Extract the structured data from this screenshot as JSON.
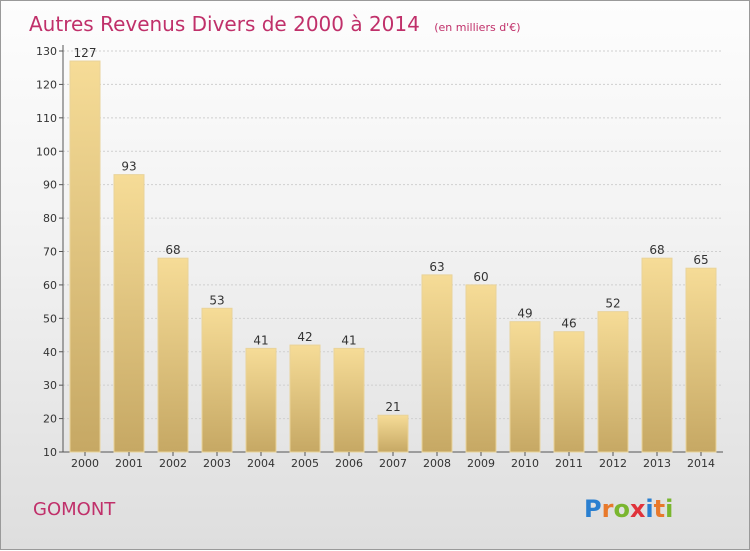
{
  "title": "Autres Revenus Divers de 2000 à 2014",
  "unit_note": "(en milliers d'€)",
  "place_name": "GOMONT",
  "logo": {
    "text": "Proxiti",
    "letters": [
      {
        "ch": "P",
        "color": "#2a7fd0"
      },
      {
        "ch": "r",
        "color": "#e8792b"
      },
      {
        "ch": "o",
        "color": "#7ab62f"
      },
      {
        "ch": "x",
        "color": "#e0333b"
      },
      {
        "ch": "i",
        "color": "#2a7fd0"
      },
      {
        "ch": "t",
        "color": "#e8792b"
      },
      {
        "ch": "i",
        "color": "#7ab62f"
      }
    ]
  },
  "colors": {
    "accent": "#c0306a",
    "bar_top": "#f6dc97",
    "bar_bottom": "#c6a864",
    "grid": "#cfcfcf"
  },
  "chart_data": {
    "type": "bar",
    "categories": [
      "2000",
      "2001",
      "2002",
      "2003",
      "2004",
      "2005",
      "2006",
      "2007",
      "2008",
      "2009",
      "2010",
      "2011",
      "2012",
      "2013",
      "2014"
    ],
    "values": [
      127,
      93,
      68,
      53,
      41,
      42,
      41,
      21,
      63,
      60,
      49,
      46,
      52,
      68,
      65
    ],
    "value_labels": [
      "127",
      "93",
      "68",
      "53",
      "41",
      "42",
      "41",
      "21",
      "63",
      "60",
      "49",
      "46",
      "52",
      "68",
      "65"
    ],
    "ylim": [
      10,
      130
    ],
    "yticks": [
      10,
      20,
      30,
      40,
      50,
      60,
      70,
      80,
      90,
      100,
      110,
      120,
      130
    ],
    "ytick_labels": [
      "10",
      "20",
      "30",
      "40",
      "50",
      "60",
      "70",
      "80",
      "90",
      "100",
      "110",
      "120",
      "130"
    ],
    "grid": true,
    "legend": "none"
  }
}
